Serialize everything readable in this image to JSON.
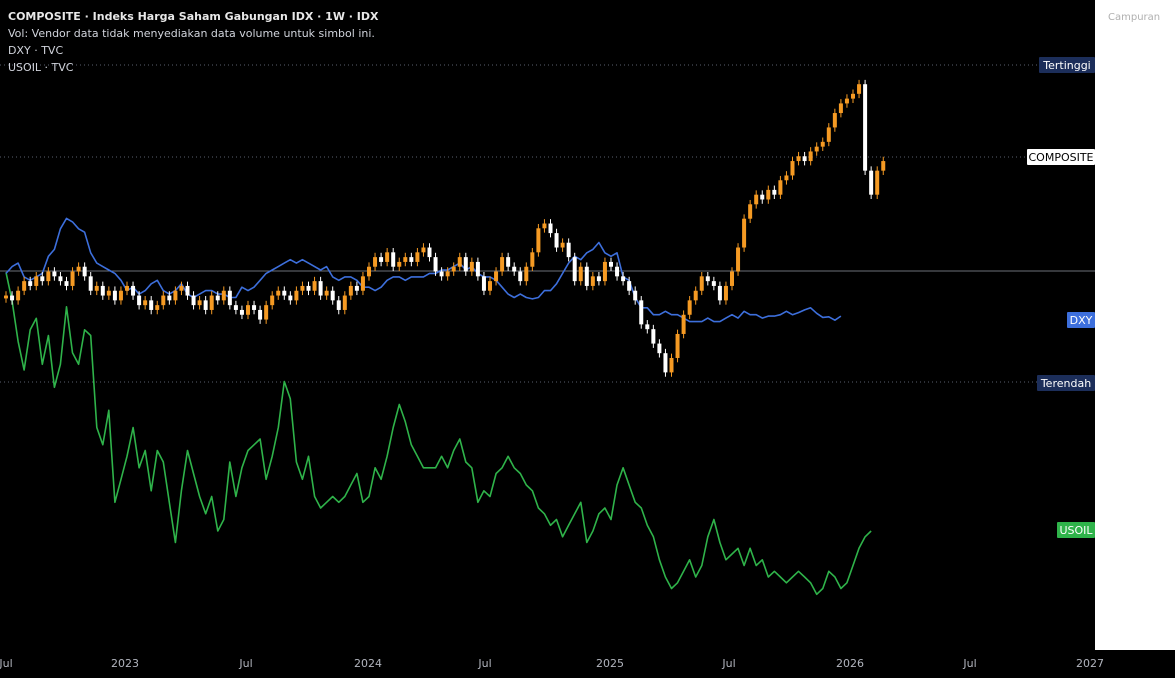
{
  "legend": {
    "title": "COMPOSITE · Indeks Harga Saham Gabungan IDX · 1W · IDX",
    "vol_note": "Vol: Vendor data tidak menyediakan data volume untuk simbol ini.",
    "dxy": "DXY · TVC",
    "usoil": "USOIL · TVC"
  },
  "right_panel": {
    "label": "Campuran"
  },
  "colors": {
    "background": "#000000",
    "candle_up": "#f59a23",
    "candle_down": "#ffffff",
    "dxy_line": "#3d6fdc",
    "usoil_line": "#2fb34a",
    "tag_hilo": "#1c2e5a",
    "tag_dxy": "#3d6fdc",
    "tag_usoil": "#2fb34a",
    "grid_text": "#b2b5be"
  },
  "chart_data": {
    "type": "line",
    "x_axis_labels": [
      "Jul",
      "2023",
      "Jul",
      "2024",
      "Jul",
      "2025",
      "Jul",
      "2026",
      "Jul",
      "2027"
    ],
    "price_tags": {
      "high": "Tertinggi",
      "composite": "COMPOSITE",
      "dxy": "DXY",
      "low": "Terendah",
      "usoil": "USOIL"
    },
    "series": [
      {
        "name": "COMPOSITE",
        "type": "candlestick",
        "values": [
          6900,
          6850,
          6950,
          7050,
          7000,
          7100,
          7050,
          7150,
          7100,
          7050,
          7000,
          7150,
          7200,
          7100,
          6950,
          7000,
          6900,
          6950,
          6850,
          6950,
          7000,
          6900,
          6800,
          6850,
          6750,
          6800,
          6900,
          6850,
          6950,
          7000,
          6900,
          6800,
          6850,
          6750,
          6900,
          6850,
          6950,
          6800,
          6750,
          6700,
          6800,
          6750,
          6650,
          6800,
          6900,
          6950,
          6900,
          6850,
          6950,
          7000,
          6950,
          7050,
          6900,
          6950,
          6850,
          6750,
          6900,
          7000,
          6950,
          7100,
          7200,
          7300,
          7250,
          7350,
          7200,
          7250,
          7300,
          7250,
          7350,
          7400,
          7300,
          7150,
          7100,
          7150,
          7200,
          7300,
          7150,
          7250,
          7100,
          6950,
          7050,
          7150,
          7300,
          7200,
          7150,
          7050,
          7200,
          7350,
          7600,
          7650,
          7550,
          7400,
          7450,
          7300,
          7050,
          7200,
          7000,
          7100,
          7050,
          7250,
          7200,
          7100,
          7050,
          6950,
          6850,
          6600,
          6550,
          6400,
          6300,
          6100,
          6250,
          6500,
          6700,
          6850,
          6950,
          7100,
          7050,
          7000,
          6850,
          7000,
          7150,
          7400,
          7700,
          7850,
          7950,
          7900,
          8000,
          7950,
          8100,
          8150,
          8300,
          8350,
          8300,
          8400,
          8450,
          8500,
          8650,
          8800,
          8900,
          8950,
          9000,
          9100,
          8200,
          7950,
          8200,
          8300
        ]
      },
      {
        "name": "DXY",
        "values": [
          104.5,
          105.5,
          106,
          104,
          103.5,
          104,
          104.5,
          107,
          108,
          111,
          112.5,
          112,
          111,
          110.5,
          107.5,
          106,
          105.5,
          105,
          104.5,
          103.5,
          102,
          102.5,
          101.5,
          102,
          103,
          103.5,
          102,
          101.5,
          102,
          103,
          101.5,
          101,
          101.5,
          102,
          102,
          101.5,
          101.5,
          101,
          101,
          102.5,
          102,
          102.5,
          103.5,
          104.5,
          105,
          105.5,
          106,
          106.5,
          106,
          106.5,
          106,
          105.5,
          105,
          105.5,
          104,
          103.5,
          104,
          104,
          103.5,
          102.5,
          102.5,
          102,
          102.5,
          103.5,
          104,
          104,
          103.5,
          104,
          104,
          104,
          104.5,
          104.5,
          105,
          105,
          105.5,
          106,
          105,
          105.5,
          104.5,
          104,
          104,
          103.5,
          102.5,
          101.5,
          101,
          101.5,
          101,
          100.8,
          101,
          102,
          102,
          103,
          104.5,
          106,
          107,
          106.5,
          107.5,
          108,
          109,
          107.5,
          107,
          107.5,
          104,
          103.5,
          101,
          99.5,
          99.5,
          98.5,
          98.5,
          99,
          98.5,
          98.5,
          98,
          97.5,
          97.5,
          97.5,
          98,
          97.5,
          97.5,
          98,
          98.5,
          98,
          99,
          98.5,
          98.5,
          98,
          98.3,
          98.3,
          98.5,
          99,
          98.5,
          98.8,
          99.2,
          99.5,
          98.7,
          98.1,
          98.2,
          97.7,
          98.3
        ]
      },
      {
        "name": "USOIL",
        "values": [
          112,
          107,
          100,
          95,
          102,
          104,
          96,
          101,
          92,
          96,
          106,
          98,
          96,
          102,
          101,
          85,
          82,
          88,
          72,
          76,
          80,
          85,
          78,
          81,
          74,
          81,
          79,
          72,
          65,
          74,
          81,
          77,
          73,
          70,
          73,
          67,
          69,
          79,
          73,
          78,
          81,
          82,
          83,
          76,
          80,
          85,
          93,
          90,
          79,
          76,
          80,
          73,
          71,
          72,
          73,
          72,
          73,
          75,
          77,
          72,
          73,
          78,
          76,
          80,
          85,
          89,
          86,
          82,
          80,
          78,
          78,
          78,
          80,
          78,
          81,
          83,
          79,
          78,
          72,
          74,
          73,
          77,
          78,
          80,
          78,
          77,
          75,
          74,
          71,
          70,
          68,
          69,
          66,
          68,
          70,
          72,
          65,
          67,
          70,
          71,
          69,
          75,
          78,
          75,
          72,
          71,
          68,
          66,
          62,
          59,
          57,
          58,
          60,
          62,
          59,
          61,
          66,
          69,
          65,
          62,
          63,
          64,
          61,
          64,
          61,
          62,
          59,
          60,
          59,
          58,
          59,
          60,
          59,
          58,
          56,
          57,
          60,
          59,
          57,
          58,
          61,
          64,
          66,
          67
        ]
      }
    ],
    "title": "",
    "xlabel": "",
    "ylabel": ""
  }
}
